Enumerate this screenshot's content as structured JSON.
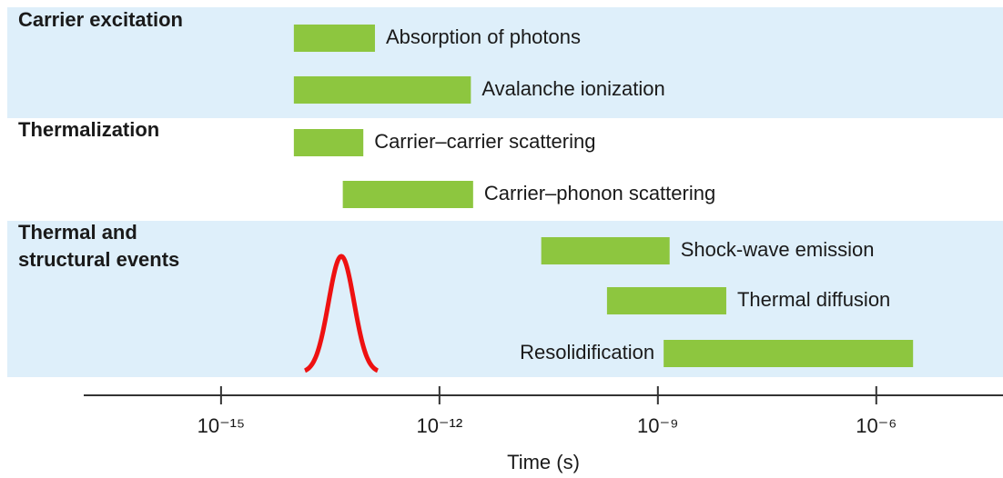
{
  "chart_data": {
    "type": "timeline",
    "xlabel": "Time (s)",
    "xscale": "log",
    "xlim": [
      1.3e-17,
      5.5e-05
    ],
    "xticks": [
      {
        "value": 1e-15,
        "label": "10⁻¹⁵"
      },
      {
        "value": 1e-12,
        "label": "10⁻¹²"
      },
      {
        "value": 1e-09,
        "label": "10⁻⁹"
      },
      {
        "value": 1e-06,
        "label": "10⁻⁶"
      }
    ],
    "color": "#8dc63f",
    "pulse_color": "#ee1111",
    "band_color": "#deeffa",
    "groups": [
      {
        "label": "Carrier excitation",
        "rows": [
          0,
          1
        ],
        "shaded": true
      },
      {
        "label": "Thermalization",
        "rows": [
          2,
          3
        ],
        "shaded": false
      },
      {
        "label": "Thermal and structural events",
        "rows": [
          4,
          5,
          6
        ],
        "shaded": true
      }
    ],
    "categories": [
      "Absorption of photons",
      "Avalanche ionization",
      "Carrier–carrier scattering",
      "Carrier–phonon scattering",
      "Shock-wave emission",
      "Thermal diffusion",
      "Resolidification"
    ],
    "values": [
      [
        1e-14,
        1.3e-13
      ],
      [
        1e-14,
        2.7e-12
      ],
      [
        1e-14,
        9e-14
      ],
      [
        4.7e-14,
        2.9e-12
      ],
      [
        2.5e-11,
        1.45e-09
      ],
      [
        2e-10,
        8.7e-09
      ],
      [
        1.2e-09,
        3.2e-06
      ]
    ]
  }
}
